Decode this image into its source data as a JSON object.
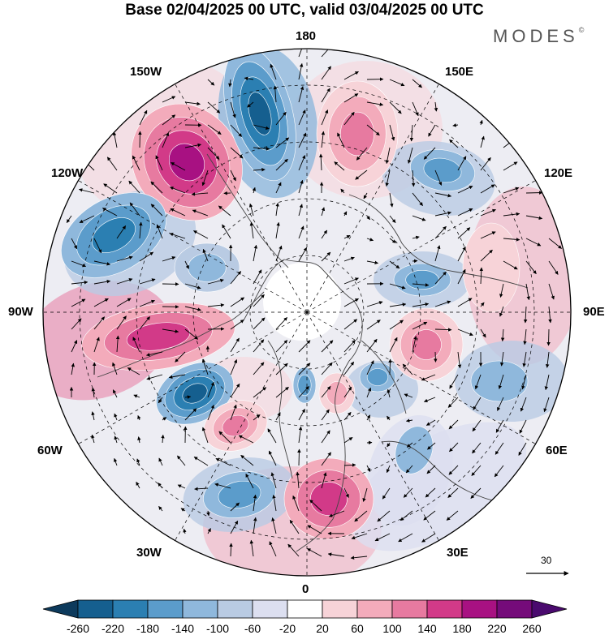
{
  "title": "Base 02/04/2025 00 UTC, valid 03/04/2025 00 UTC",
  "brand": {
    "name": "MODES",
    "mark": "©"
  },
  "longitude_labels": {
    "top": "180",
    "bottom": "0",
    "left": "90W",
    "right": "90E",
    "upper_left_1": "150W",
    "upper_left_2": "120W",
    "upper_right_1": "150E",
    "upper_right_2": "120E",
    "lower_left_1": "60W",
    "lower_left_2": "30W",
    "lower_right_1": "60E",
    "lower_right_2": "30E"
  },
  "reference_vector": {
    "value": "30"
  },
  "colorbar": {
    "labels": [
      "-260",
      "-220",
      "-180",
      "-140",
      "-100",
      "-60",
      "-20",
      "20",
      "60",
      "100",
      "140",
      "180",
      "220",
      "260"
    ],
    "colors": [
      "#0d3a5c",
      "#155f8f",
      "#2b7fb2",
      "#5b9ccb",
      "#8fb8dc",
      "#b9cbe3",
      "#dcdff0",
      "#ffffff",
      "#f7d3d8",
      "#f3abbb",
      "#e77aa0",
      "#d23a88",
      "#a81182",
      "#750b7a",
      "#4a0a6e"
    ]
  },
  "colors": {
    "land_shading": "#f0f0f0",
    "grid": "#000000",
    "coast": "#444444"
  }
}
